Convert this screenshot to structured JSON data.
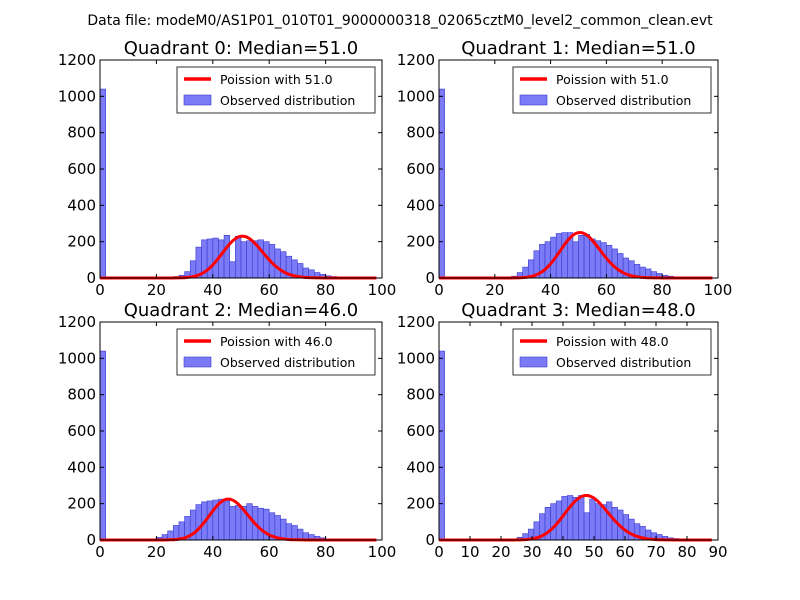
{
  "suptitle": "Data file: modeM0/AS1P01_010T01_9000000318_02065cztM0_level2_common_clean.evt",
  "colors": {
    "bar_fill": "#7b7bf7",
    "bar_edge": "#3a3ad0",
    "curve": "#ff0000"
  },
  "chart_data": [
    {
      "type": "bar",
      "title": "Quadrant 0: Median=51.0",
      "xlim": [
        0,
        100
      ],
      "ylim": [
        0,
        1200
      ],
      "xticks": [
        0,
        20,
        40,
        60,
        80,
        100
      ],
      "yticks": [
        0,
        200,
        400,
        600,
        800,
        1000,
        1200
      ],
      "legend": {
        "placement": "upper-right",
        "curve_label": "Poission with 51.0",
        "bar_label": "Observed distribution"
      },
      "bins": [
        {
          "x0": 0,
          "x1": 2,
          "value": 1040
        },
        {
          "x0": 26,
          "x1": 28,
          "value": 8
        },
        {
          "x0": 28,
          "x1": 30,
          "value": 15
        },
        {
          "x0": 30,
          "x1": 32,
          "value": 35
        },
        {
          "x0": 32,
          "x1": 34,
          "value": 95
        },
        {
          "x0": 34,
          "x1": 36,
          "value": 170
        },
        {
          "x0": 36,
          "x1": 38,
          "value": 210
        },
        {
          "x0": 38,
          "x1": 40,
          "value": 215
        },
        {
          "x0": 40,
          "x1": 42,
          "value": 220
        },
        {
          "x0": 42,
          "x1": 44,
          "value": 210
        },
        {
          "x0": 44,
          "x1": 46,
          "value": 235
        },
        {
          "x0": 46,
          "x1": 48,
          "value": 90
        },
        {
          "x0": 48,
          "x1": 50,
          "value": 230
        },
        {
          "x0": 50,
          "x1": 52,
          "value": 200
        },
        {
          "x0": 52,
          "x1": 54,
          "value": 205
        },
        {
          "x0": 54,
          "x1": 56,
          "value": 205
        },
        {
          "x0": 56,
          "x1": 58,
          "value": 210
        },
        {
          "x0": 58,
          "x1": 60,
          "value": 200
        },
        {
          "x0": 60,
          "x1": 62,
          "value": 185
        },
        {
          "x0": 62,
          "x1": 64,
          "value": 160
        },
        {
          "x0": 64,
          "x1": 66,
          "value": 145
        },
        {
          "x0": 66,
          "x1": 68,
          "value": 120
        },
        {
          "x0": 68,
          "x1": 70,
          "value": 100
        },
        {
          "x0": 70,
          "x1": 72,
          "value": 80
        },
        {
          "x0": 72,
          "x1": 74,
          "value": 55
        },
        {
          "x0": 74,
          "x1": 76,
          "value": 45
        },
        {
          "x0": 76,
          "x1": 78,
          "value": 30
        },
        {
          "x0": 78,
          "x1": 80,
          "value": 20
        },
        {
          "x0": 80,
          "x1": 82,
          "value": 12
        },
        {
          "x0": 82,
          "x1": 84,
          "value": 8
        },
        {
          "x0": 84,
          "x1": 86,
          "value": 4
        },
        {
          "x0": 86,
          "x1": 88,
          "value": 3
        },
        {
          "x0": 88,
          "x1": 90,
          "value": 2
        },
        {
          "x0": 90,
          "x1": 92,
          "value": 1
        },
        {
          "x0": 92,
          "x1": 94,
          "value": 1
        }
      ],
      "curve": {
        "type": "poisson",
        "lambda": 51.0,
        "peak": 230,
        "x_start": 0,
        "x_end": 98
      }
    },
    {
      "type": "bar",
      "title": "Quadrant 1: Median=51.0",
      "xlim": [
        0,
        100
      ],
      "ylim": [
        0,
        1200
      ],
      "xticks": [
        0,
        20,
        40,
        60,
        80,
        100
      ],
      "yticks": [
        0,
        200,
        400,
        600,
        800,
        1000,
        1200
      ],
      "legend": {
        "placement": "upper-right",
        "curve_label": "Poission with 51.0",
        "bar_label": "Observed distribution"
      },
      "bins": [
        {
          "x0": 0,
          "x1": 2,
          "value": 1040
        },
        {
          "x0": 26,
          "x1": 28,
          "value": 10
        },
        {
          "x0": 28,
          "x1": 30,
          "value": 30
        },
        {
          "x0": 30,
          "x1": 32,
          "value": 60
        },
        {
          "x0": 32,
          "x1": 34,
          "value": 100
        },
        {
          "x0": 34,
          "x1": 36,
          "value": 150
        },
        {
          "x0": 36,
          "x1": 38,
          "value": 185
        },
        {
          "x0": 38,
          "x1": 40,
          "value": 200
        },
        {
          "x0": 40,
          "x1": 42,
          "value": 225
        },
        {
          "x0": 42,
          "x1": 44,
          "value": 245
        },
        {
          "x0": 44,
          "x1": 46,
          "value": 250
        },
        {
          "x0": 46,
          "x1": 48,
          "value": 250
        },
        {
          "x0": 48,
          "x1": 50,
          "value": 200
        },
        {
          "x0": 50,
          "x1": 52,
          "value": 235
        },
        {
          "x0": 52,
          "x1": 54,
          "value": 240
        },
        {
          "x0": 54,
          "x1": 56,
          "value": 215
        },
        {
          "x0": 56,
          "x1": 58,
          "value": 205
        },
        {
          "x0": 58,
          "x1": 60,
          "value": 195
        },
        {
          "x0": 60,
          "x1": 62,
          "value": 180
        },
        {
          "x0": 62,
          "x1": 64,
          "value": 160
        },
        {
          "x0": 64,
          "x1": 66,
          "value": 135
        },
        {
          "x0": 66,
          "x1": 68,
          "value": 110
        },
        {
          "x0": 68,
          "x1": 70,
          "value": 95
        },
        {
          "x0": 70,
          "x1": 72,
          "value": 75
        },
        {
          "x0": 72,
          "x1": 74,
          "value": 60
        },
        {
          "x0": 74,
          "x1": 76,
          "value": 50
        },
        {
          "x0": 76,
          "x1": 78,
          "value": 35
        },
        {
          "x0": 78,
          "x1": 80,
          "value": 25
        },
        {
          "x0": 80,
          "x1": 82,
          "value": 15
        },
        {
          "x0": 82,
          "x1": 84,
          "value": 10
        },
        {
          "x0": 84,
          "x1": 86,
          "value": 6
        },
        {
          "x0": 86,
          "x1": 88,
          "value": 3
        },
        {
          "x0": 88,
          "x1": 90,
          "value": 2
        }
      ],
      "curve": {
        "type": "poisson",
        "lambda": 51.0,
        "peak": 250,
        "x_start": 0,
        "x_end": 98
      }
    },
    {
      "type": "bar",
      "title": "Quadrant 2: Median=46.0",
      "xlim": [
        0,
        100
      ],
      "ylim": [
        0,
        1200
      ],
      "xticks": [
        0,
        20,
        40,
        60,
        80,
        100
      ],
      "yticks": [
        0,
        200,
        400,
        600,
        800,
        1000,
        1200
      ],
      "legend": {
        "placement": "upper-right",
        "curve_label": "Poission with 46.0",
        "bar_label": "Observed distribution"
      },
      "bins": [
        {
          "x0": 0,
          "x1": 2,
          "value": 1040
        },
        {
          "x0": 18,
          "x1": 20,
          "value": 5
        },
        {
          "x0": 20,
          "x1": 22,
          "value": 15
        },
        {
          "x0": 22,
          "x1": 24,
          "value": 30
        },
        {
          "x0": 24,
          "x1": 26,
          "value": 50
        },
        {
          "x0": 26,
          "x1": 28,
          "value": 80
        },
        {
          "x0": 28,
          "x1": 30,
          "value": 100
        },
        {
          "x0": 30,
          "x1": 32,
          "value": 130
        },
        {
          "x0": 32,
          "x1": 34,
          "value": 165
        },
        {
          "x0": 34,
          "x1": 36,
          "value": 195
        },
        {
          "x0": 36,
          "x1": 38,
          "value": 210
        },
        {
          "x0": 38,
          "x1": 40,
          "value": 215
        },
        {
          "x0": 40,
          "x1": 42,
          "value": 220
        },
        {
          "x0": 42,
          "x1": 44,
          "value": 225
        },
        {
          "x0": 44,
          "x1": 46,
          "value": 215
        },
        {
          "x0": 46,
          "x1": 48,
          "value": 185
        },
        {
          "x0": 48,
          "x1": 50,
          "value": 190
        },
        {
          "x0": 50,
          "x1": 52,
          "value": 185
        },
        {
          "x0": 52,
          "x1": 54,
          "value": 200
        },
        {
          "x0": 54,
          "x1": 56,
          "value": 185
        },
        {
          "x0": 56,
          "x1": 58,
          "value": 175
        },
        {
          "x0": 58,
          "x1": 60,
          "value": 170
        },
        {
          "x0": 60,
          "x1": 62,
          "value": 150
        },
        {
          "x0": 62,
          "x1": 64,
          "value": 135
        },
        {
          "x0": 64,
          "x1": 66,
          "value": 115
        },
        {
          "x0": 66,
          "x1": 68,
          "value": 90
        },
        {
          "x0": 68,
          "x1": 70,
          "value": 80
        },
        {
          "x0": 70,
          "x1": 72,
          "value": 60
        },
        {
          "x0": 72,
          "x1": 74,
          "value": 40
        },
        {
          "x0": 74,
          "x1": 76,
          "value": 30
        },
        {
          "x0": 76,
          "x1": 78,
          "value": 20
        },
        {
          "x0": 78,
          "x1": 80,
          "value": 12
        },
        {
          "x0": 80,
          "x1": 82,
          "value": 6
        },
        {
          "x0": 82,
          "x1": 84,
          "value": 3
        }
      ],
      "curve": {
        "type": "poisson",
        "lambda": 46.0,
        "peak": 225,
        "x_start": 0,
        "x_end": 98
      }
    },
    {
      "type": "bar",
      "title": "Quadrant 3: Median=48.0",
      "xlim": [
        0,
        90
      ],
      "ylim": [
        0,
        1200
      ],
      "xticks": [
        0,
        10,
        20,
        30,
        40,
        50,
        60,
        70,
        80,
        90
      ],
      "yticks": [
        0,
        200,
        400,
        600,
        800,
        1000,
        1200
      ],
      "legend": {
        "placement": "upper-right",
        "curve_label": "Poission with 48.0",
        "bar_label": "Observed distribution"
      },
      "bins": [
        {
          "x0": 0,
          "x1": 1.8,
          "value": 1040
        },
        {
          "x0": 25.2,
          "x1": 27,
          "value": 15
        },
        {
          "x0": 27,
          "x1": 28.8,
          "value": 35
        },
        {
          "x0": 28.8,
          "x1": 30.6,
          "value": 60
        },
        {
          "x0": 30.6,
          "x1": 32.4,
          "value": 100
        },
        {
          "x0": 32.4,
          "x1": 34.2,
          "value": 145
        },
        {
          "x0": 34.2,
          "x1": 36,
          "value": 180
        },
        {
          "x0": 36,
          "x1": 37.8,
          "value": 200
        },
        {
          "x0": 37.8,
          "x1": 39.6,
          "value": 215
        },
        {
          "x0": 39.6,
          "x1": 41.4,
          "value": 240
        },
        {
          "x0": 41.4,
          "x1": 43.2,
          "value": 245
        },
        {
          "x0": 43.2,
          "x1": 45,
          "value": 235
        },
        {
          "x0": 45,
          "x1": 46.8,
          "value": 245
        },
        {
          "x0": 46.8,
          "x1": 48.6,
          "value": 150
        },
        {
          "x0": 48.6,
          "x1": 50.4,
          "value": 225
        },
        {
          "x0": 50.4,
          "x1": 52.2,
          "value": 200
        },
        {
          "x0": 52.2,
          "x1": 54,
          "value": 195
        },
        {
          "x0": 54,
          "x1": 55.8,
          "value": 210
        },
        {
          "x0": 55.8,
          "x1": 57.6,
          "value": 180
        },
        {
          "x0": 57.6,
          "x1": 59.4,
          "value": 165
        },
        {
          "x0": 59.4,
          "x1": 61.2,
          "value": 140
        },
        {
          "x0": 61.2,
          "x1": 63,
          "value": 115
        },
        {
          "x0": 63,
          "x1": 64.8,
          "value": 90
        },
        {
          "x0": 64.8,
          "x1": 66.6,
          "value": 75
        },
        {
          "x0": 66.6,
          "x1": 68.4,
          "value": 55
        },
        {
          "x0": 68.4,
          "x1": 70.2,
          "value": 40
        },
        {
          "x0": 70.2,
          "x1": 72,
          "value": 30
        },
        {
          "x0": 72,
          "x1": 73.8,
          "value": 20
        },
        {
          "x0": 73.8,
          "x1": 75.6,
          "value": 12
        },
        {
          "x0": 75.6,
          "x1": 77.4,
          "value": 8
        },
        {
          "x0": 77.4,
          "x1": 79.2,
          "value": 4
        }
      ],
      "curve": {
        "type": "poisson",
        "lambda": 48.0,
        "peak": 245,
        "x_start": 0,
        "x_end": 88
      }
    }
  ]
}
